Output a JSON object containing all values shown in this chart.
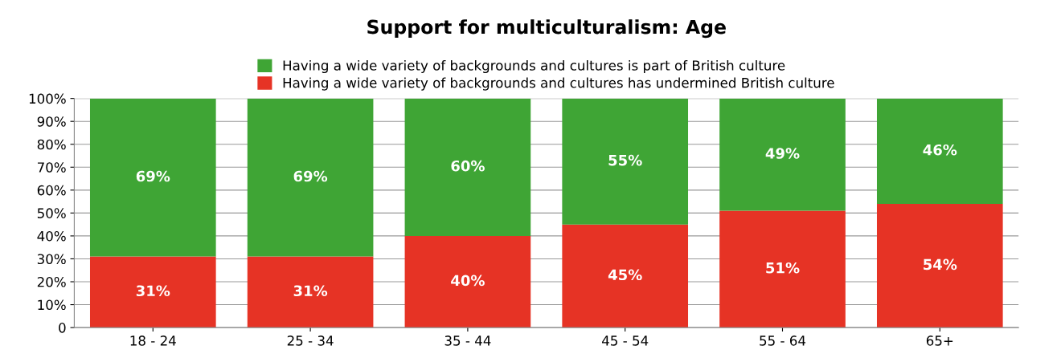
{
  "chart_data": {
    "type": "bar",
    "title": "Support for multiculturalism: Age",
    "categories": [
      "18 - 24",
      "25 - 34",
      "35 - 44",
      "45 - 54",
      "55 - 64",
      "65+"
    ],
    "stacked": true,
    "series": [
      {
        "name": "Having a wide variety of backgrounds and cultures has undermined British culture",
        "color": "#e63325",
        "values": [
          31,
          31,
          40,
          45,
          51,
          54
        ],
        "value_labels": [
          "31%",
          "31%",
          "40%",
          "45%",
          "51%",
          "54%"
        ]
      },
      {
        "name": "Having a wide variety of backgrounds and cultures is part of British culture",
        "color": "#3fa535",
        "values": [
          69,
          69,
          60,
          55,
          49,
          46
        ],
        "value_labels": [
          "69%",
          "69%",
          "60%",
          "55%",
          "49%",
          "46%"
        ]
      }
    ],
    "ylim": [
      0,
      100
    ],
    "yticks": [
      0,
      {
        "value": 10,
        "label": "10%"
      },
      {
        "value": 20,
        "label": "20%"
      },
      {
        "value": 30,
        "label": "30%"
      },
      {
        "value": 40,
        "label": "40%"
      },
      {
        "value": 50,
        "label": "50%"
      },
      {
        "value": 60,
        "label": "60%"
      },
      {
        "value": 70,
        "label": "70%"
      },
      {
        "value": 80,
        "label": "80%"
      },
      {
        "value": 90,
        "label": "90%"
      },
      {
        "value": 100,
        "label": "100%"
      }
    ],
    "grid": "y",
    "legend": "top"
  }
}
